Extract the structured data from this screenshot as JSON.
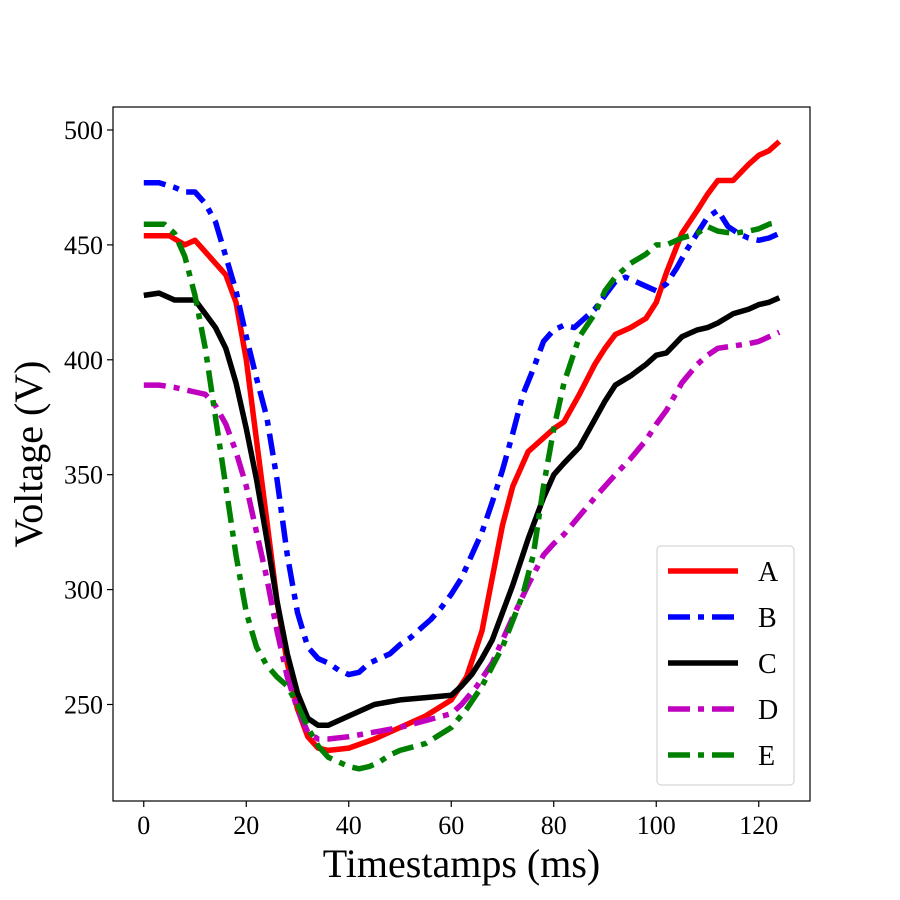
{
  "chart_data": {
    "type": "line",
    "title": "",
    "xlabel": "Timestamps (ms)",
    "ylabel": "Voltage (V)",
    "xlim": [
      -6,
      130
    ],
    "ylim": [
      208,
      510
    ],
    "xticks": [
      0,
      20,
      40,
      60,
      80,
      100,
      120
    ],
    "yticks": [
      250,
      300,
      350,
      400,
      450,
      500
    ],
    "grid": false,
    "legend_position": "lower-right",
    "series": [
      {
        "name": "A",
        "color": "#ff0000",
        "style": "solid",
        "x": [
          0,
          5,
          8,
          10,
          12,
          14,
          16,
          18,
          20,
          22,
          24,
          26,
          28,
          30,
          32,
          34,
          36,
          40,
          45,
          50,
          55,
          60,
          63,
          66,
          68,
          70,
          72,
          75,
          78,
          80,
          82,
          85,
          88,
          90,
          92,
          95,
          98,
          100,
          102,
          105,
          108,
          110,
          112,
          115,
          118,
          120,
          122,
          124
        ],
        "y": [
          454,
          454,
          450,
          452,
          447,
          442,
          437,
          425,
          400,
          365,
          330,
          295,
          268,
          248,
          236,
          231,
          230,
          231,
          235,
          240,
          245,
          252,
          262,
          282,
          305,
          328,
          345,
          360,
          366,
          370,
          373,
          385,
          398,
          405,
          411,
          414,
          418,
          425,
          438,
          455,
          465,
          472,
          478,
          478,
          485,
          489,
          491,
          495
        ]
      },
      {
        "name": "B",
        "color": "#0000ff",
        "style": "dashdot",
        "x": [
          0,
          3,
          6,
          8,
          10,
          12,
          14,
          16,
          18,
          20,
          22,
          24,
          26,
          28,
          30,
          32,
          34,
          36,
          38,
          40,
          42,
          44,
          46,
          48,
          50,
          52,
          54,
          56,
          58,
          60,
          62,
          64,
          66,
          68,
          70,
          72,
          74,
          76,
          78,
          80,
          82,
          84,
          86,
          88,
          90,
          92,
          94,
          96,
          98,
          100,
          102,
          104,
          106,
          108,
          110,
          112,
          114,
          116,
          118,
          120,
          122,
          124
        ],
        "y": [
          477,
          477,
          475,
          473,
          473,
          468,
          460,
          445,
          430,
          410,
          392,
          375,
          348,
          315,
          290,
          275,
          270,
          268,
          265,
          263,
          264,
          268,
          270,
          272,
          276,
          279,
          283,
          287,
          292,
          298,
          305,
          315,
          325,
          338,
          352,
          368,
          385,
          396,
          408,
          413,
          415,
          414,
          418,
          422,
          428,
          434,
          436,
          434,
          432,
          430,
          433,
          440,
          448,
          455,
          462,
          465,
          458,
          455,
          453,
          452,
          453,
          455
        ]
      },
      {
        "name": "C",
        "color": "#000000",
        "style": "solid",
        "x": [
          0,
          3,
          6,
          10,
          12,
          14,
          16,
          18,
          20,
          22,
          24,
          26,
          28,
          30,
          32,
          34,
          36,
          40,
          45,
          50,
          55,
          60,
          62,
          64,
          66,
          68,
          70,
          72,
          75,
          78,
          80,
          82,
          85,
          88,
          90,
          92,
          95,
          98,
          100,
          102,
          105,
          108,
          110,
          112,
          115,
          118,
          120,
          122,
          124
        ],
        "y": [
          428,
          429,
          426,
          426,
          420,
          414,
          405,
          390,
          370,
          348,
          322,
          295,
          272,
          255,
          244,
          241,
          241,
          245,
          250,
          252,
          253,
          254,
          258,
          263,
          270,
          278,
          290,
          302,
          322,
          340,
          350,
          355,
          362,
          374,
          382,
          389,
          393,
          398,
          402,
          403,
          410,
          413,
          414,
          416,
          420,
          422,
          424,
          425,
          427
        ]
      },
      {
        "name": "D",
        "color": "#bf00bf",
        "style": "dashdot",
        "x": [
          0,
          3,
          6,
          8,
          10,
          12,
          14,
          16,
          18,
          20,
          22,
          24,
          26,
          28,
          30,
          32,
          34,
          36,
          40,
          45,
          50,
          55,
          60,
          62,
          65,
          68,
          70,
          72,
          75,
          78,
          80,
          82,
          85,
          88,
          90,
          92,
          95,
          98,
          100,
          102,
          105,
          108,
          110,
          112,
          115,
          118,
          120,
          122,
          124
        ],
        "y": [
          389,
          389,
          388,
          387,
          386,
          385,
          380,
          372,
          360,
          345,
          325,
          305,
          282,
          262,
          248,
          238,
          235,
          235,
          236,
          238,
          240,
          243,
          246,
          250,
          258,
          268,
          278,
          288,
          302,
          315,
          320,
          324,
          332,
          340,
          345,
          350,
          357,
          365,
          372,
          378,
          390,
          398,
          402,
          405,
          406,
          407,
          408,
          410,
          412
        ]
      },
      {
        "name": "E",
        "color": "#008000",
        "style": "dashdot",
        "x": [
          0,
          2,
          4,
          6,
          8,
          10,
          12,
          14,
          16,
          18,
          20,
          22,
          24,
          26,
          28,
          30,
          32,
          34,
          36,
          38,
          40,
          42,
          44,
          46,
          48,
          50,
          55,
          60,
          63,
          66,
          70,
          74,
          76,
          78,
          80,
          82,
          85,
          88,
          90,
          92,
          95,
          98,
          100,
          102,
          105,
          108,
          110,
          112,
          115,
          118,
          120,
          122,
          124
        ],
        "y": [
          459,
          459,
          459,
          455,
          445,
          428,
          405,
          375,
          345,
          315,
          290,
          275,
          267,
          262,
          258,
          250,
          240,
          232,
          227,
          225,
          223,
          222,
          223,
          225,
          228,
          230,
          233,
          240,
          248,
          258,
          275,
          298,
          315,
          345,
          370,
          390,
          410,
          420,
          430,
          436,
          442,
          446,
          450,
          450,
          453,
          455,
          458,
          456,
          455,
          456,
          457,
          459,
          460
        ]
      }
    ]
  }
}
